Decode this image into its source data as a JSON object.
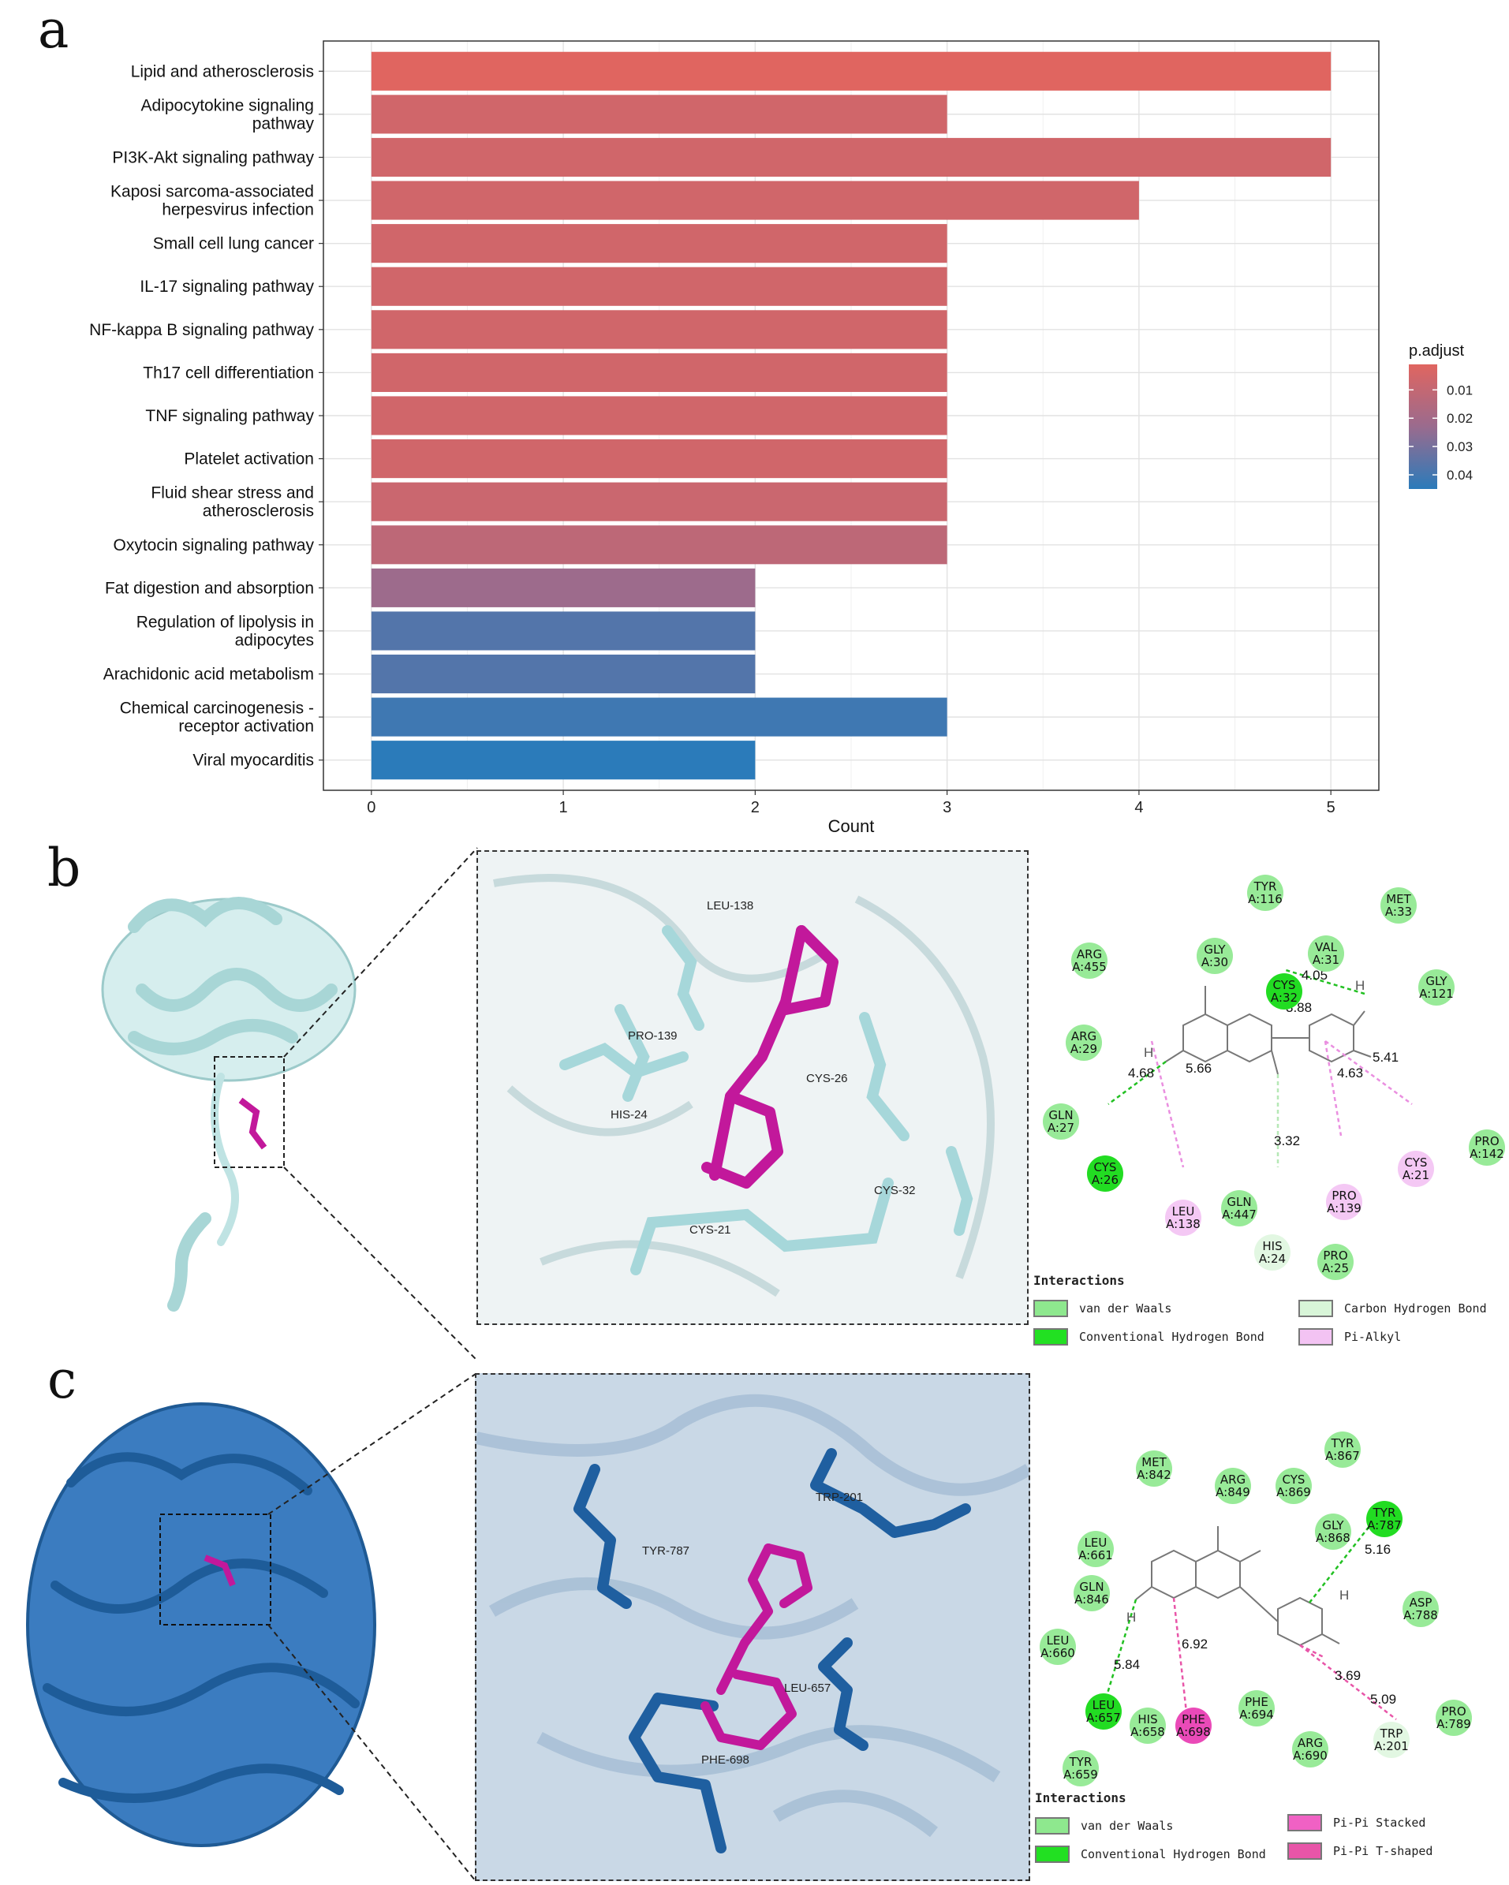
{
  "panels": {
    "a": "a",
    "b": "b",
    "c": "c"
  },
  "colors": {
    "low": "#e06560",
    "high": "#2b7bba",
    "vdw": "#8ee88e",
    "hbond": "#22e022",
    "chbond": "#d8f5d8",
    "pialkyl": "#f3c3f3",
    "pipi_stacked": "#f061c4",
    "pipi_tshaped": "#e855a8",
    "ligand": "#c2189b",
    "protein_b": "#bfe3e3",
    "protein_c": "#2a6db0"
  },
  "chart_data": {
    "type": "bar",
    "orientation": "horizontal",
    "categories": [
      [
        "Lipid and atherosclerosis"
      ],
      [
        "Adipocytokine signaling",
        "pathway"
      ],
      [
        "PI3K-Akt signaling pathway"
      ],
      [
        "Kaposi sarcoma-associated",
        "herpesvirus infection"
      ],
      [
        "Small cell lung cancer"
      ],
      [
        "IL-17 signaling pathway"
      ],
      [
        "NF-kappa B signaling pathway"
      ],
      [
        "Th17 cell differentiation"
      ],
      [
        "TNF signaling pathway"
      ],
      [
        "Platelet activation"
      ],
      [
        "Fluid shear stress and",
        "atherosclerosis"
      ],
      [
        "Oxytocin signaling pathway"
      ],
      [
        "Fat digestion and absorption"
      ],
      [
        "Regulation of lipolysis in",
        "adipocytes"
      ],
      [
        "Arachidonic acid metabolism"
      ],
      [
        "Chemical carcinogenesis -",
        "receptor activation"
      ],
      [
        "Viral myocarditis"
      ]
    ],
    "values": [
      5,
      3,
      5,
      4,
      3,
      3,
      3,
      3,
      3,
      3,
      3,
      3,
      2,
      2,
      2,
      3,
      2
    ],
    "p_adjust": [
      0.001,
      0.006,
      0.006,
      0.006,
      0.006,
      0.006,
      0.006,
      0.006,
      0.006,
      0.006,
      0.008,
      0.012,
      0.022,
      0.037,
      0.037,
      0.041,
      0.045
    ],
    "xlabel": "Count",
    "xlim": [
      -0.25,
      5.25
    ],
    "xticks": [
      "0",
      "1",
      "2",
      "3",
      "4",
      "5"
    ],
    "legend": {
      "title": "p.adjust",
      "ticks": [
        "0.01",
        "0.02",
        "0.03",
        "0.04"
      ],
      "tick_values": [
        0.01,
        0.02,
        0.03,
        0.04
      ],
      "range": [
        0.001,
        0.045
      ],
      "position": "right"
    }
  },
  "panel_b": {
    "residues_3d": [
      "LEU-138",
      "PRO-139",
      "CYS-26",
      "HIS-24",
      "CYS-21",
      "CYS-32"
    ],
    "residues_2d": [
      {
        "name": "TYR",
        "id": "A:116",
        "type": "vdw"
      },
      {
        "name": "MET",
        "id": "A:33",
        "type": "vdw"
      },
      {
        "name": "ARG",
        "id": "A:455",
        "type": "vdw"
      },
      {
        "name": "GLY",
        "id": "A:30",
        "type": "vdw"
      },
      {
        "name": "VAL",
        "id": "A:31",
        "type": "vdw"
      },
      {
        "name": "CYS",
        "id": "A:32",
        "type": "hbond"
      },
      {
        "name": "GLY",
        "id": "A:121",
        "type": "vdw"
      },
      {
        "name": "ARG",
        "id": "A:29",
        "type": "vdw"
      },
      {
        "name": "GLN",
        "id": "A:27",
        "type": "vdw"
      },
      {
        "name": "CYS",
        "id": "A:26",
        "type": "hbond"
      },
      {
        "name": "LEU",
        "id": "A:138",
        "type": "pialkyl"
      },
      {
        "name": "GLN",
        "id": "A:447",
        "type": "vdw"
      },
      {
        "name": "HIS",
        "id": "A:24",
        "type": "chbond"
      },
      {
        "name": "PRO",
        "id": "A:139",
        "type": "pialkyl"
      },
      {
        "name": "PRO",
        "id": "A:25",
        "type": "vdw"
      },
      {
        "name": "CYS",
        "id": "A:21",
        "type": "pialkyl"
      },
      {
        "name": "PRO",
        "id": "A:142",
        "type": "vdw"
      }
    ],
    "distances": [
      "4.05",
      "3.88",
      "4.68",
      "5.66",
      "3.32",
      "4.63",
      "5.41"
    ],
    "h_labels": [
      "H",
      "H"
    ],
    "legend_title": "Interactions",
    "legend": [
      {
        "label": "van der Waals",
        "type": "vdw"
      },
      {
        "label": "Conventional Hydrogen Bond",
        "type": "hbond"
      },
      {
        "label": "Carbon Hydrogen Bond",
        "type": "chbond"
      },
      {
        "label": "Pi-Alkyl",
        "type": "pialkyl"
      }
    ]
  },
  "panel_c": {
    "residues_3d": [
      "TRP-201",
      "TYR-787",
      "LEU-657",
      "PHE-698"
    ],
    "residues_2d": [
      {
        "name": "TYR",
        "id": "A:867",
        "type": "vdw"
      },
      {
        "name": "MET",
        "id": "A:842",
        "type": "vdw"
      },
      {
        "name": "ARG",
        "id": "A:849",
        "type": "vdw"
      },
      {
        "name": "CYS",
        "id": "A:869",
        "type": "vdw"
      },
      {
        "name": "TYR",
        "id": "A:787",
        "type": "hbond"
      },
      {
        "name": "GLY",
        "id": "A:868",
        "type": "vdw"
      },
      {
        "name": "LEU",
        "id": "A:661",
        "type": "vdw"
      },
      {
        "name": "GLN",
        "id": "A:846",
        "type": "vdw"
      },
      {
        "name": "ASP",
        "id": "A:788",
        "type": "vdw"
      },
      {
        "name": "LEU",
        "id": "A:660",
        "type": "vdw"
      },
      {
        "name": "LEU",
        "id": "A:657",
        "type": "hbond"
      },
      {
        "name": "HIS",
        "id": "A:658",
        "type": "vdw"
      },
      {
        "name": "PHE",
        "id": "A:698",
        "type": "pipi"
      },
      {
        "name": "PHE",
        "id": "A:694",
        "type": "vdw"
      },
      {
        "name": "ARG",
        "id": "A:690",
        "type": "vdw"
      },
      {
        "name": "TRP",
        "id": "A:201",
        "type": "chbond"
      },
      {
        "name": "PRO",
        "id": "A:789",
        "type": "vdw"
      },
      {
        "name": "TYR",
        "id": "A:659",
        "type": "vdw"
      }
    ],
    "distances": [
      "5.16",
      "5.84",
      "6.92",
      "3.69",
      "5.09"
    ],
    "h_labels": [
      "H",
      "H"
    ],
    "legend_title": "Interactions",
    "legend": [
      {
        "label": "van der Waals",
        "type": "vdw"
      },
      {
        "label": "Conventional Hydrogen Bond",
        "type": "hbond"
      },
      {
        "label": "Pi-Pi Stacked",
        "type": "pipi_stacked"
      },
      {
        "label": "Pi-Pi T-shaped",
        "type": "pipi_tshaped"
      }
    ]
  }
}
